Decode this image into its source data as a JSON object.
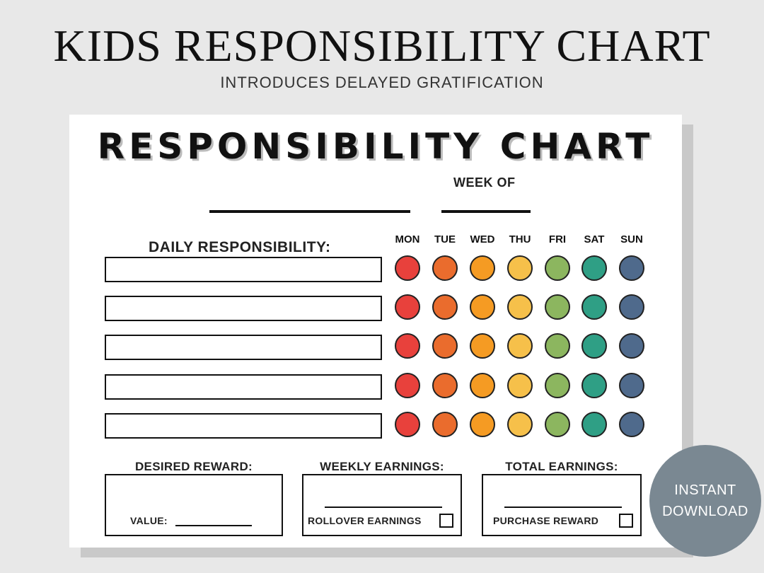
{
  "header": {
    "title": "KIDS RESPONSIBILITY CHART",
    "subtitle": "INTRODUCES DELAYED GRATIFICATION"
  },
  "sheet": {
    "title": "RESPONSIBILITY CHART",
    "week_label": "WEEK OF",
    "daily_label": "DAILY RESPONSIBILITY:",
    "days": [
      "MON",
      "TUE",
      "WED",
      "THU",
      "FRI",
      "SAT",
      "SUN"
    ],
    "day_colors": [
      "#e8413c",
      "#ea6c2d",
      "#f59b23",
      "#f6c04a",
      "#8cb65f",
      "#2f9f85",
      "#4f6a8c"
    ],
    "rows": 5,
    "desired_reward": {
      "label": "DESIRED REWARD:",
      "value_label": "VALUE:"
    },
    "weekly_earnings": {
      "label": "WEEKLY EARNINGS:",
      "rollover_label": "ROLLOVER EARNINGS"
    },
    "total_earnings": {
      "label": "TOTAL EARNINGS:",
      "purchase_label": "PURCHASE REWARD"
    }
  },
  "badge": {
    "line1": "INSTANT",
    "line2": "DOWNLOAD"
  }
}
